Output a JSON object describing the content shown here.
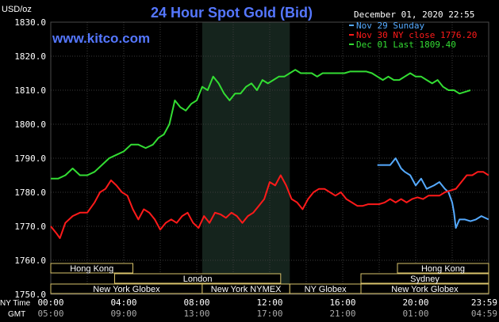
{
  "chart_data": {
    "type": "line",
    "title": "24 Hour Spot Gold (Bid)",
    "watermark": "www.kitco.com",
    "date_label": "December 01, 2020 22:55",
    "y_unit_label": "USD/oz",
    "ylim": [
      1750,
      1830
    ],
    "y_ticks": [
      "1830.0",
      "1820.0",
      "1810.0",
      "1800.0",
      "1790.0",
      "1780.0",
      "1770.0",
      "1760.0",
      "1750.0"
    ],
    "x_range_hours": [
      0,
      24
    ],
    "x_ticks_ny": [
      "00:00",
      "04:00",
      "08:00",
      "12:00",
      "16:00",
      "20:00",
      "23:59"
    ],
    "x_ticks_gmt": [
      "05:00",
      "09:00",
      "13:00",
      "17:00",
      "21:00",
      "01:00",
      "04:59"
    ],
    "x_row_label_ny": "NY Time",
    "x_row_label_gmt": "GMT",
    "session_highlight_hours": [
      8.3,
      13.1
    ],
    "legend": [
      {
        "label": "Nov 29 Sunday",
        "color": "#55aaff"
      },
      {
        "label": "Nov 30 NY close 1776.20",
        "color": "#ff1a1a"
      },
      {
        "label": "Dec 01 Last 1809.40",
        "color": "#33dd33"
      }
    ],
    "sessions": [
      {
        "name": "Hong Kong",
        "start_hour": 0,
        "end_hour": 4.5,
        "row": 0
      },
      {
        "name": "Hong Kong",
        "start_hour": 19.0,
        "end_hour": 24,
        "row": 0
      },
      {
        "name": "London",
        "start_hour": 3.5,
        "end_hour": 12.6,
        "row": 1
      },
      {
        "name": "Sydney",
        "start_hour": 17.0,
        "end_hour": 24,
        "row": 1
      },
      {
        "name": "New York Globex",
        "start_hour": 0,
        "end_hour": 8.3,
        "row": 2
      },
      {
        "name": "New York NYMEX",
        "start_hour": 8.3,
        "end_hour": 13.1,
        "row": 2
      },
      {
        "name": "NY Globex",
        "start_hour": 13.1,
        "end_hour": 17.0,
        "row": 2
      },
      {
        "name": "New York Globex",
        "start_hour": 17.0,
        "end_hour": 24,
        "row": 2
      }
    ],
    "series": [
      {
        "name": "Nov 29 Sunday",
        "color": "#55aaff",
        "x": [
          17.9,
          18.6,
          18.9,
          19.2,
          19.4,
          19.7,
          20.0,
          20.3,
          20.6,
          21.0,
          21.3,
          21.6,
          21.8,
          22.0,
          22.1,
          22.2,
          22.4,
          22.7,
          23.0,
          23.3,
          23.6,
          23.99
        ],
        "values": [
          1788,
          1788,
          1790,
          1787,
          1786,
          1785,
          1782,
          1784,
          1781,
          1782,
          1783,
          1781,
          1780,
          1777,
          1774,
          1769.5,
          1772,
          1772,
          1771.5,
          1772,
          1773,
          1772
        ]
      },
      {
        "name": "Nov 30 NY close 1776.20",
        "color": "#ff1a1a",
        "x": [
          0,
          0.3,
          0.5,
          0.8,
          1.2,
          1.6,
          2.0,
          2.4,
          2.7,
          3.0,
          3.3,
          3.6,
          3.9,
          4.2,
          4.5,
          4.8,
          5.1,
          5.4,
          5.7,
          6.0,
          6.3,
          6.6,
          6.9,
          7.2,
          7.5,
          7.8,
          8.1,
          8.4,
          8.7,
          9.0,
          9.3,
          9.6,
          9.9,
          10.2,
          10.5,
          10.8,
          11.1,
          11.4,
          11.7,
          12.0,
          12.3,
          12.6,
          12.9,
          13.2,
          13.5,
          13.8,
          14.1,
          14.4,
          14.7,
          15.0,
          15.3,
          15.6,
          15.9,
          16.2,
          16.5,
          16.8,
          17.1,
          17.4,
          17.7,
          18.0,
          18.3,
          18.6,
          18.9,
          19.2,
          19.5,
          19.8,
          20.1,
          20.4,
          20.7,
          21.0,
          21.3,
          21.6,
          21.9,
          22.2,
          22.5,
          22.8,
          23.1,
          23.4,
          23.7,
          23.99
        ],
        "values": [
          1770,
          1768,
          1766.5,
          1771,
          1773,
          1774,
          1774,
          1777,
          1780,
          1781,
          1783.5,
          1782,
          1780,
          1779,
          1775,
          1772,
          1775,
          1774,
          1772,
          1769,
          1771,
          1772,
          1771,
          1773,
          1774,
          1771,
          1769.5,
          1773,
          1771,
          1774,
          1773.5,
          1772.5,
          1774,
          1773,
          1771,
          1773,
          1774,
          1776,
          1778,
          1783,
          1782,
          1785,
          1782,
          1778,
          1777,
          1775,
          1778,
          1780,
          1781,
          1781,
          1780,
          1779,
          1780,
          1778,
          1777,
          1776,
          1776,
          1776.5,
          1776.5,
          1776.5,
          1777,
          1778,
          1777,
          1778,
          1777,
          1778,
          1778.5,
          1778,
          1779,
          1779,
          1779,
          1780,
          1780.5,
          1781,
          1783,
          1785,
          1785,
          1786,
          1786,
          1785
        ]
      },
      {
        "name": "Dec 01 Last 1809.40",
        "color": "#33dd33",
        "x": [
          0,
          0.4,
          0.8,
          1.2,
          1.6,
          2.0,
          2.4,
          2.8,
          3.2,
          3.6,
          4.0,
          4.4,
          4.8,
          5.2,
          5.6,
          5.9,
          6.2,
          6.5,
          6.8,
          7.1,
          7.4,
          7.7,
          8.0,
          8.3,
          8.6,
          8.9,
          9.2,
          9.5,
          9.8,
          10.1,
          10.4,
          10.7,
          11.0,
          11.3,
          11.6,
          11.9,
          12.2,
          12.5,
          12.8,
          13.1,
          13.4,
          13.7,
          14.0,
          14.3,
          14.6,
          14.9,
          15.2,
          15.5,
          15.8,
          16.1,
          16.4,
          16.7,
          17.0,
          17.3,
          17.6,
          17.9,
          18.2,
          18.5,
          18.8,
          19.1,
          19.4,
          19.7,
          20.0,
          20.3,
          20.6,
          20.9,
          21.2,
          21.5,
          21.8,
          22.1,
          22.4,
          22.7,
          23.0
        ],
        "values": [
          1784,
          1784,
          1785,
          1787,
          1785,
          1785,
          1786,
          1788,
          1790,
          1791,
          1792,
          1794,
          1794,
          1793,
          1794,
          1796,
          1797,
          1800,
          1807,
          1805,
          1804,
          1806,
          1807,
          1811,
          1810,
          1814,
          1812,
          1809,
          1807,
          1809,
          1809,
          1811,
          1812,
          1810,
          1813,
          1812,
          1813,
          1814,
          1814,
          1815,
          1816,
          1815,
          1815,
          1815,
          1814,
          1815,
          1815,
          1815,
          1815,
          1815,
          1815.5,
          1815.5,
          1815.5,
          1815.5,
          1815,
          1814,
          1813,
          1814,
          1813,
          1813,
          1814,
          1815,
          1814,
          1814,
          1813,
          1812,
          1813,
          1811,
          1810,
          1810,
          1809,
          1809.5,
          1810
        ]
      }
    ]
  }
}
